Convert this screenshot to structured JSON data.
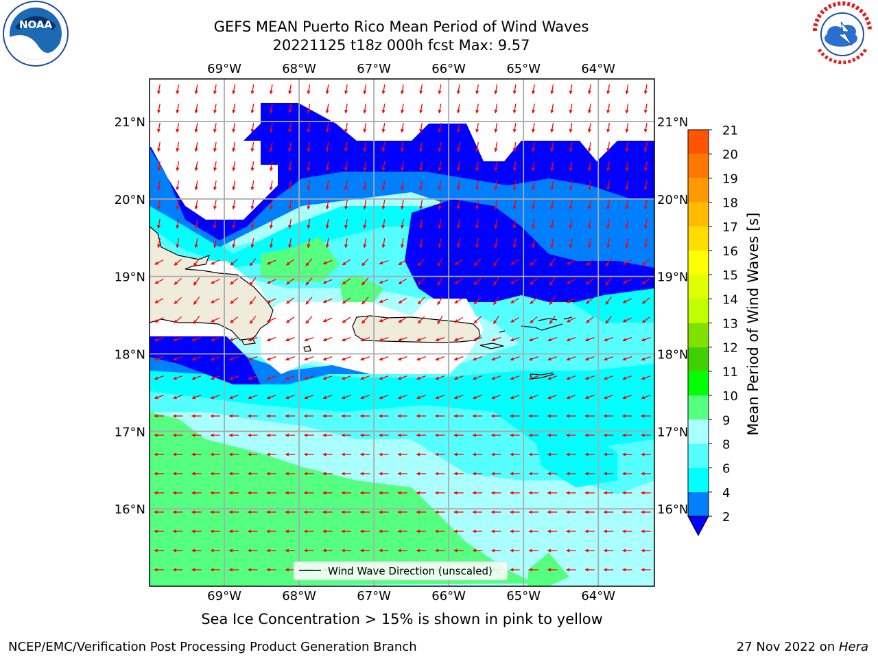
{
  "header": {
    "title_line1": "GEFS MEAN Puerto Rico Mean Period of Wind Waves",
    "title_line2": "20221125 t18z 000h fcst   Max: 9.57"
  },
  "map": {
    "region": "Puerto Rico",
    "lon_range": [
      -70.0,
      -63.25
    ],
    "lat_range": [
      15.0,
      21.55
    ],
    "lon_ticks": [
      "69°W",
      "68°W",
      "67°W",
      "66°W",
      "65°W",
      "64°W"
    ],
    "lat_ticks": [
      "21°N",
      "20°N",
      "19°N",
      "18°N",
      "17°N",
      "16°N"
    ],
    "grid": true,
    "vector_color": "#ff0000",
    "land_color": "#efecdc",
    "legend_label": "Wind Wave Direction (unscaled)"
  },
  "colorbar": {
    "label": "Mean Period of Wind Waves [s]",
    "ticks": [
      "2",
      "4",
      "6",
      "8",
      "9",
      "10",
      "11",
      "12",
      "13",
      "14",
      "15",
      "16",
      "17",
      "18",
      "19",
      "20",
      "21"
    ],
    "colors": [
      "#0000ff",
      "#0080ff",
      "#00ffff",
      "#55ffff",
      "#aaffff",
      "#55ff80",
      "#00ff00",
      "#40d000",
      "#80e000",
      "#c0ff00",
      "#e0ff00",
      "#ffff00",
      "#ffdd00",
      "#ffbb00",
      "#ff9900",
      "#ff7700",
      "#ff5500",
      "#ff3300",
      "#ff1100"
    ]
  },
  "notes": {
    "sea_ice": "Sea Ice Concentration > 15% is shown in pink to yellow"
  },
  "footer": {
    "left": "NCEP/EMC/Verification Post Processing Product Generation Branch",
    "right_prefix": "27 Nov 2022 on ",
    "right_host": "Hera"
  },
  "logos": {
    "noaa_text": "NOAA",
    "nws_text": "NATIONAL WEATHER SERVICE"
  }
}
